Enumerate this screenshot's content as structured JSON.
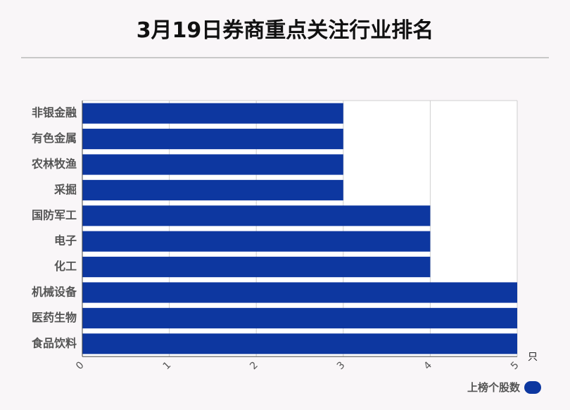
{
  "chart_data": {
    "type": "bar",
    "orientation": "horizontal",
    "title": "3月19日券商重点关注行业排名",
    "categories": [
      "非银金融",
      "有色金属",
      "农林牧渔",
      "采掘",
      "国防军工",
      "电子",
      "化工",
      "机械设备",
      "医药生物",
      "食品饮料"
    ],
    "series": [
      {
        "name": "上榜个股数",
        "values": [
          3,
          3,
          3,
          3,
          4,
          4,
          4,
          5,
          5,
          5
        ]
      }
    ],
    "xlim": [
      0,
      5
    ],
    "xticks": [
      "0",
      "1",
      "2",
      "3",
      "4",
      "5"
    ],
    "xunit": "只",
    "grid": true,
    "legend_position": "bottom-right",
    "bar_color": "#0d37a0"
  }
}
